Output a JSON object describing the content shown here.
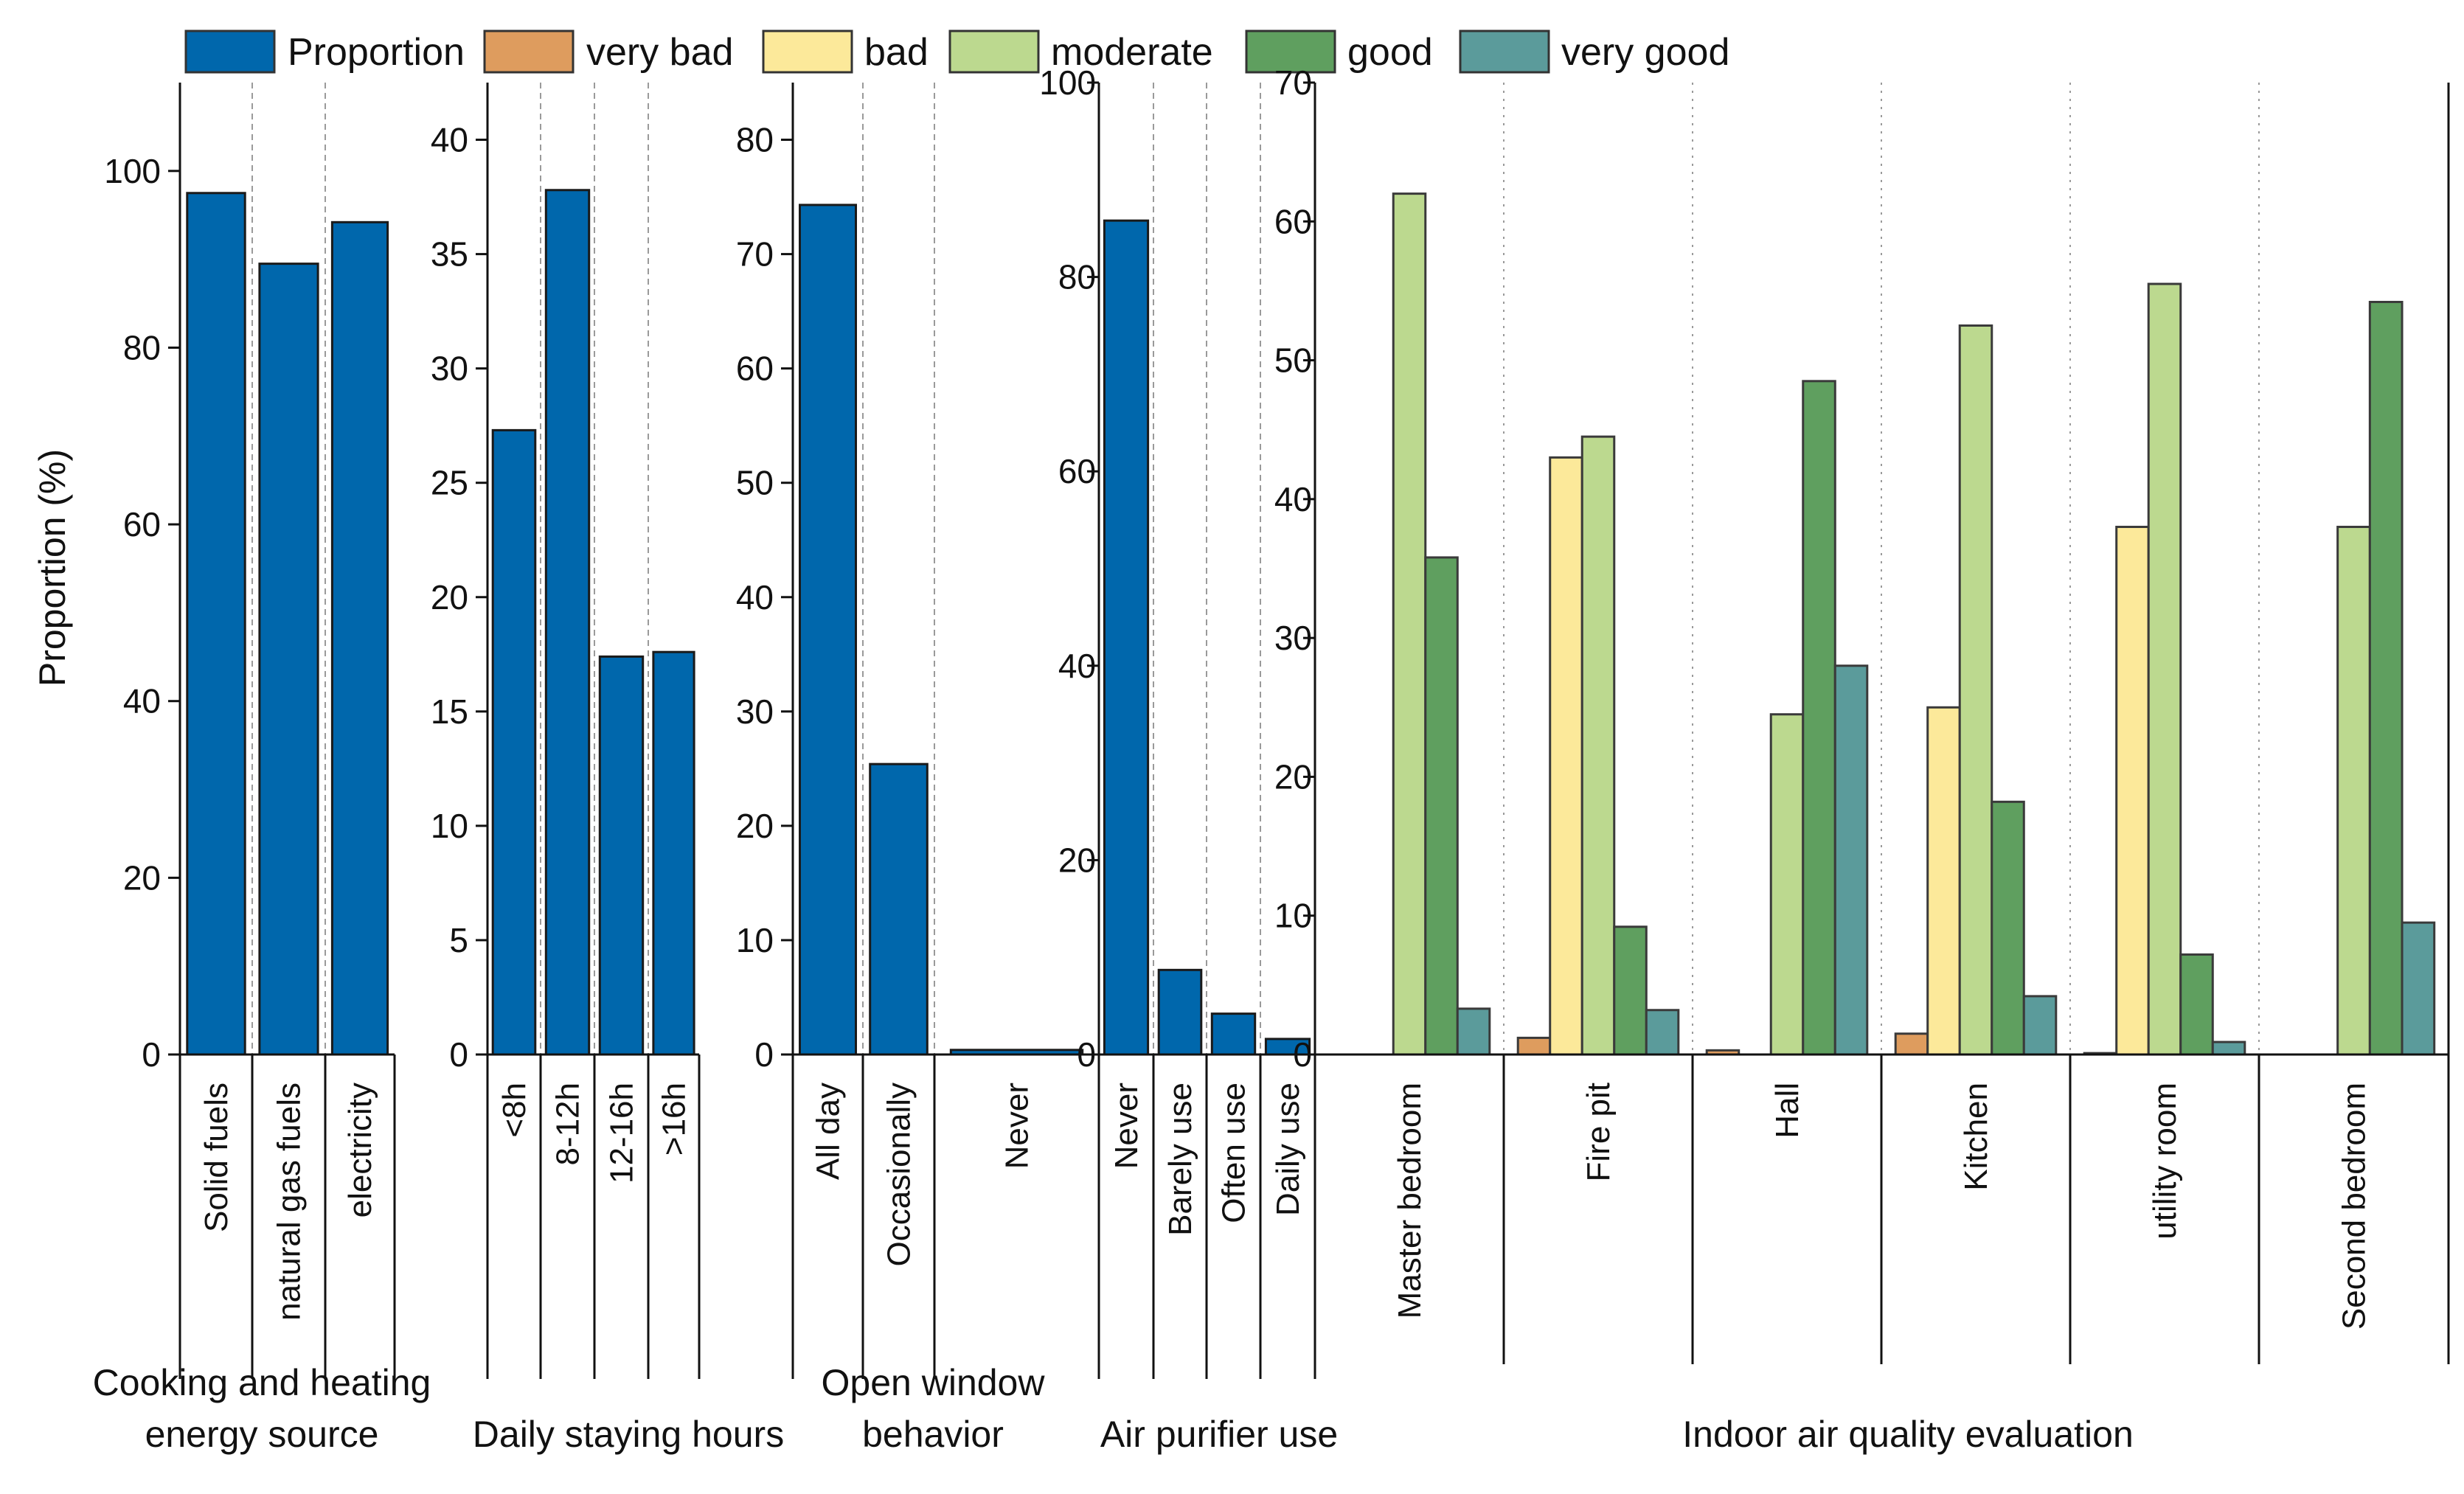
{
  "chart_data": {
    "type": "bar",
    "legend": [
      {
        "name": "Proportion",
        "color": "#0067ac"
      },
      {
        "name": "very bad",
        "color": "#de9c5e"
      },
      {
        "name": "bad",
        "color": "#fce99a"
      },
      {
        "name": "moderate",
        "color": "#bcd98f"
      },
      {
        "name": "good",
        "color": "#5f9f5f"
      },
      {
        "name": "very good",
        "color": "#5b9b9b"
      }
    ],
    "legend_placement": "top",
    "ylabel": "Proportion (%)",
    "panels": [
      {
        "title_lines": [
          "Cooking and heating",
          "energy source"
        ],
        "ylim": [
          0,
          110
        ],
        "yticks": [
          0,
          20,
          40,
          60,
          80,
          100
        ],
        "categories": [
          "Solid fuels",
          "natural gas fuels",
          "electricity"
        ],
        "values": [
          97.5,
          89.5,
          94.2
        ]
      },
      {
        "title_lines": [
          "Daily staying hours"
        ],
        "ylim": [
          0,
          42.5
        ],
        "yticks": [
          0,
          5,
          10,
          15,
          20,
          25,
          30,
          35,
          40
        ],
        "categories": [
          "<8h",
          "8-12h",
          "12-16h",
          ">16h"
        ],
        "values": [
          27.3,
          37.8,
          17.4,
          17.6
        ]
      },
      {
        "title_lines": [
          "Open window",
          "behavior"
        ],
        "ylim": [
          0,
          85
        ],
        "yticks": [
          0,
          10,
          20,
          30,
          40,
          50,
          60,
          70,
          80
        ],
        "categories": [
          "All day",
          "Occasionally",
          "Never"
        ],
        "values": [
          74.3,
          25.4,
          0.4
        ]
      },
      {
        "title_lines": [
          "Air purifier use"
        ],
        "ylim": [
          0,
          100
        ],
        "yticks": [
          0,
          20,
          40,
          60,
          80,
          100
        ],
        "categories": [
          "Never",
          "Barely use",
          "Often use",
          "Daily use"
        ],
        "values": [
          85.8,
          8.7,
          4.2,
          1.6
        ]
      },
      {
        "title_lines": [
          "Indoor air quality evaluation"
        ],
        "ylim": [
          0,
          70
        ],
        "yticks": [
          0,
          10,
          20,
          30,
          40,
          50,
          60,
          70
        ],
        "categories": [
          "Master bedroom",
          "Fire pit",
          "Hall",
          "Kitchen",
          "utility room",
          "Second bedroom"
        ],
        "series": [
          {
            "name": "very bad",
            "values": [
              0,
              1.2,
              0.3,
              1.5,
              0.1,
              0
            ]
          },
          {
            "name": "bad",
            "values": [
              0,
              43,
              0,
              25,
              38,
              0
            ]
          },
          {
            "name": "moderate",
            "values": [
              62,
              44.5,
              24.5,
              52.5,
              55.5,
              38
            ]
          },
          {
            "name": "good",
            "values": [
              35.8,
              9.2,
              48.5,
              18.2,
              7.2,
              54.2
            ]
          },
          {
            "name": "very good",
            "values": [
              3.3,
              3.2,
              28,
              4.2,
              0.9,
              9.5
            ]
          }
        ]
      }
    ]
  }
}
